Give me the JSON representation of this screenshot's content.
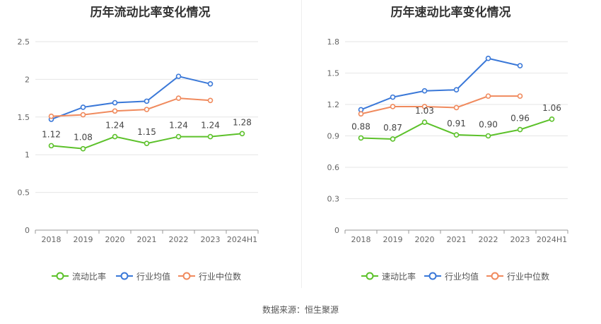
{
  "colors": {
    "main": "#5cc12a",
    "industry_avg": "#3a78d8",
    "industry_median": "#f08a5d",
    "axis": "#999999",
    "grid": "#e6e6e6",
    "text": "#666666"
  },
  "legend_icons": {
    "main": "circle-line-icon",
    "industry_avg": "circle-line-icon",
    "industry_median": "circle-line-icon"
  },
  "source": "数据来源：恒生聚源",
  "chart_data": [
    {
      "type": "line",
      "title": "历年流动比率变化情况",
      "categories": [
        "2018",
        "2019",
        "2020",
        "2021",
        "2022",
        "2023",
        "2024H1"
      ],
      "ylim": [
        0,
        2.5
      ],
      "yticks": [
        "0",
        "0.5",
        "1",
        "1.5",
        "2",
        "2.5"
      ],
      "grid": true,
      "legend_position": "bottom",
      "series": [
        {
          "name": "流动比率",
          "key": "main",
          "values": [
            1.12,
            1.08,
            1.24,
            1.15,
            1.24,
            1.24,
            1.28
          ],
          "labels": [
            "1.12",
            "1.08",
            "1.24",
            "1.15",
            "1.24",
            "1.24",
            "1.28"
          ]
        },
        {
          "name": "行业均值",
          "key": "industry_avg",
          "values": [
            1.47,
            1.63,
            1.69,
            1.71,
            2.04,
            1.94,
            null
          ]
        },
        {
          "name": "行业中位数",
          "key": "industry_median",
          "values": [
            1.51,
            1.53,
            1.58,
            1.6,
            1.75,
            1.72,
            null
          ]
        }
      ]
    },
    {
      "type": "line",
      "title": "历年速动比率变化情况",
      "categories": [
        "2018",
        "2019",
        "2020",
        "2021",
        "2022",
        "2023",
        "2024H1"
      ],
      "ylim": [
        0,
        1.8
      ],
      "yticks": [
        "0",
        "0.3",
        "0.6",
        "0.9",
        "1.2",
        "1.5",
        "1.8"
      ],
      "grid": true,
      "legend_position": "bottom",
      "series": [
        {
          "name": "速动比率",
          "key": "main",
          "values": [
            0.88,
            0.87,
            1.03,
            0.91,
            0.9,
            0.96,
            1.06
          ],
          "labels": [
            "0.88",
            "0.87",
            "1.03",
            "0.91",
            "0.90",
            "0.96",
            "1.06"
          ]
        },
        {
          "name": "行业均值",
          "key": "industry_avg",
          "values": [
            1.15,
            1.27,
            1.33,
            1.34,
            1.64,
            1.57,
            null
          ]
        },
        {
          "name": "行业中位数",
          "key": "industry_median",
          "values": [
            1.11,
            1.18,
            1.18,
            1.17,
            1.28,
            1.28,
            null
          ]
        }
      ]
    }
  ]
}
